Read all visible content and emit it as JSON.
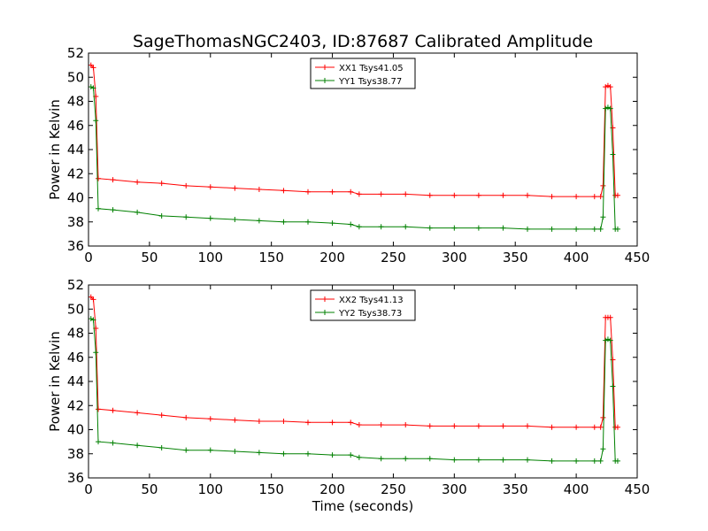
{
  "figure": {
    "title": "SageThomasNGC2403, ID:87687 Calibrated Amplitude",
    "xlabel": "Time (seconds)"
  },
  "chart_data": [
    {
      "type": "line",
      "title": "SageThomasNGC2403, ID:87687 Calibrated Amplitude",
      "xlabel": "",
      "ylabel": "Power in Kelvin",
      "xlim": [
        0,
        450
      ],
      "ylim": [
        36,
        52
      ],
      "xticks": [
        "0",
        "50",
        "100",
        "150",
        "200",
        "250",
        "300",
        "350",
        "400",
        "450"
      ],
      "yticks": [
        "36",
        "38",
        "40",
        "42",
        "44",
        "46",
        "48",
        "50",
        "52"
      ],
      "legend": "top-center",
      "grid": false,
      "series": [
        {
          "name": "XX1 Tsys41.05",
          "color": "#ff0000",
          "x": [
            2,
            4,
            6,
            8,
            20,
            40,
            60,
            80,
            100,
            120,
            140,
            160,
            180,
            200,
            215,
            222,
            240,
            260,
            280,
            300,
            320,
            340,
            360,
            380,
            400,
            415,
            420,
            422,
            424,
            426,
            428,
            430,
            432,
            434
          ],
          "y": [
            51.0,
            50.8,
            48.4,
            41.6,
            41.5,
            41.3,
            41.2,
            41.0,
            40.9,
            40.8,
            40.7,
            40.6,
            40.5,
            40.5,
            40.5,
            40.3,
            40.3,
            40.3,
            40.2,
            40.2,
            40.2,
            40.2,
            40.2,
            40.1,
            40.1,
            40.1,
            40.1,
            41.0,
            49.2,
            49.3,
            49.2,
            45.8,
            40.2,
            40.2
          ]
        },
        {
          "name": "YY1 Tsys38.77",
          "color": "#008000",
          "x": [
            2,
            4,
            6,
            8,
            20,
            40,
            60,
            80,
            100,
            120,
            140,
            160,
            180,
            200,
            215,
            222,
            240,
            260,
            280,
            300,
            320,
            340,
            360,
            380,
            400,
            415,
            420,
            422,
            424,
            426,
            428,
            430,
            432,
            434
          ],
          "y": [
            49.2,
            49.1,
            46.4,
            39.1,
            39.0,
            38.8,
            38.5,
            38.4,
            38.3,
            38.2,
            38.1,
            38.0,
            38.0,
            37.9,
            37.8,
            37.6,
            37.6,
            37.6,
            37.5,
            37.5,
            37.5,
            37.5,
            37.4,
            37.4,
            37.4,
            37.4,
            37.4,
            38.4,
            47.4,
            47.5,
            47.4,
            43.6,
            37.4,
            37.4
          ]
        }
      ]
    },
    {
      "type": "line",
      "title": "",
      "xlabel": "Time (seconds)",
      "ylabel": "Power in Kelvin",
      "xlim": [
        0,
        450
      ],
      "ylim": [
        36,
        52
      ],
      "xticks": [
        "0",
        "50",
        "100",
        "150",
        "200",
        "250",
        "300",
        "350",
        "400",
        "450"
      ],
      "yticks": [
        "36",
        "38",
        "40",
        "42",
        "44",
        "46",
        "48",
        "50",
        "52"
      ],
      "legend": "top-center",
      "grid": false,
      "series": [
        {
          "name": "XX2 Tsys41.13",
          "color": "#ff0000",
          "x": [
            2,
            4,
            6,
            8,
            20,
            40,
            60,
            80,
            100,
            120,
            140,
            160,
            180,
            200,
            215,
            222,
            240,
            260,
            280,
            300,
            320,
            340,
            360,
            380,
            400,
            415,
            420,
            422,
            424,
            426,
            428,
            430,
            432,
            434
          ],
          "y": [
            51.0,
            50.8,
            48.4,
            41.7,
            41.6,
            41.4,
            41.2,
            41.0,
            40.9,
            40.8,
            40.7,
            40.7,
            40.6,
            40.6,
            40.6,
            40.4,
            40.4,
            40.4,
            40.3,
            40.3,
            40.3,
            40.3,
            40.3,
            40.2,
            40.2,
            40.2,
            40.2,
            41.0,
            49.3,
            49.3,
            49.3,
            45.8,
            40.2,
            40.2
          ]
        },
        {
          "name": "YY2 Tsys38.73",
          "color": "#008000",
          "x": [
            2,
            4,
            6,
            8,
            20,
            40,
            60,
            80,
            100,
            120,
            140,
            160,
            180,
            200,
            215,
            222,
            240,
            260,
            280,
            300,
            320,
            340,
            360,
            380,
            400,
            415,
            420,
            422,
            424,
            426,
            428,
            430,
            432,
            434
          ],
          "y": [
            49.2,
            49.1,
            46.4,
            39.0,
            38.9,
            38.7,
            38.5,
            38.3,
            38.3,
            38.2,
            38.1,
            38.0,
            38.0,
            37.9,
            37.9,
            37.7,
            37.6,
            37.6,
            37.6,
            37.5,
            37.5,
            37.5,
            37.5,
            37.4,
            37.4,
            37.4,
            37.4,
            38.4,
            47.4,
            47.5,
            47.4,
            43.6,
            37.4,
            37.4
          ]
        }
      ]
    }
  ]
}
